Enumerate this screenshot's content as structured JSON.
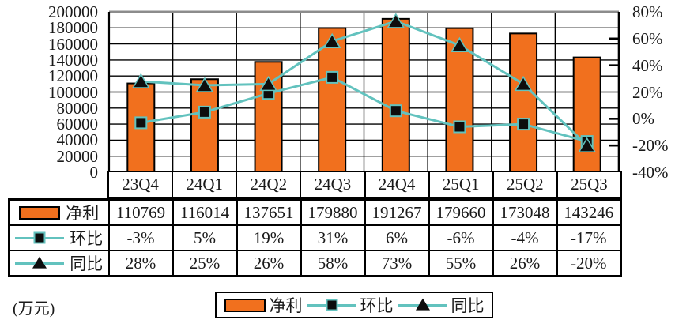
{
  "unit_label": "(万元)",
  "colors": {
    "bar_fill": "#F1701E",
    "bar_stroke": "#000000",
    "line": "#62C2BE",
    "marker_fill": "#0D0D0D",
    "grid": "#000000",
    "frame": "#000000",
    "frame_top": "#8C8C8C",
    "background": "#FFFFFF"
  },
  "chart_data": {
    "type": "bar+line combo",
    "categories": [
      "23Q4",
      "24Q1",
      "24Q2",
      "24Q3",
      "24Q4",
      "25Q1",
      "25Q2",
      "25Q3"
    ],
    "series": [
      {
        "name": "净利",
        "type": "bar",
        "axis": "left",
        "values": [
          110769,
          116014,
          137651,
          179880,
          191267,
          179660,
          173048,
          143246
        ]
      },
      {
        "name": "环比",
        "type": "line",
        "marker": "square",
        "axis": "right",
        "values_pct": [
          -3,
          5,
          19,
          31,
          6,
          -6,
          -4,
          -17
        ]
      },
      {
        "name": "同比",
        "type": "line",
        "marker": "triangle",
        "axis": "right",
        "values_pct": [
          28,
          25,
          26,
          58,
          73,
          55,
          26,
          -20
        ]
      }
    ],
    "left_axis": {
      "min": 0,
      "max": 200000,
      "step": 20000,
      "ticks": [
        "200000",
        "180000",
        "160000",
        "140000",
        "120000",
        "100000",
        "80000",
        "60000",
        "40000",
        "20000",
        "0"
      ]
    },
    "right_axis": {
      "min": -40,
      "max": 80,
      "step": 20,
      "ticks": [
        "80%",
        "60%",
        "40%",
        "20%",
        "0%",
        "-20%",
        "-40%"
      ],
      "inner_tick_pcts": [
        60,
        40,
        0,
        -20
      ]
    },
    "grid": {
      "horizontal": true,
      "vertical": true
    },
    "legend_position": "bottom",
    "unit": "万元"
  },
  "table": {
    "header": [
      "23Q4",
      "24Q1",
      "24Q2",
      "24Q3",
      "24Q4",
      "25Q1",
      "25Q2",
      "25Q3"
    ],
    "rows": [
      {
        "label": "净利",
        "swatch": "bar",
        "values": [
          "110769",
          "116014",
          "137651",
          "179880",
          "191267",
          "179660",
          "173048",
          "143246"
        ]
      },
      {
        "label": "环比",
        "swatch": "line-square",
        "values": [
          "-3%",
          "5%",
          "19%",
          "31%",
          "6%",
          "-6%",
          "-4%",
          "-17%"
        ]
      },
      {
        "label": "同比",
        "swatch": "line-triangle",
        "values": [
          "28%",
          "25%",
          "26%",
          "58%",
          "73%",
          "55%",
          "26%",
          "-20%"
        ]
      }
    ]
  },
  "legend": {
    "items": [
      {
        "label": "净利",
        "swatch": "bar"
      },
      {
        "label": "环比",
        "swatch": "line-square"
      },
      {
        "label": "同比",
        "swatch": "line-triangle"
      }
    ]
  }
}
